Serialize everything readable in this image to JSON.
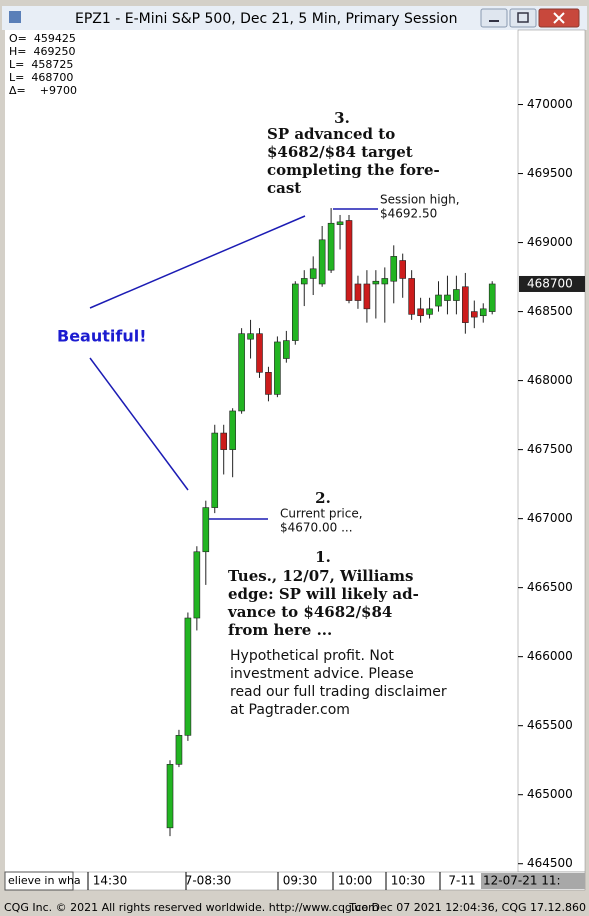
{
  "chart_data": {
    "type": "candlestick",
    "title": "EPZ1 - E-Mini S&P 500, Dec 21, 5 Min, Primary Session",
    "open": [
      464760,
      465220,
      465430,
      466280,
      466760,
      467080,
      467620,
      467500,
      467780,
      468300,
      468340,
      468060,
      467900,
      468160,
      468290,
      468700,
      468740,
      468700,
      468800,
      469130,
      469160,
      468700,
      468700,
      468700,
      468700,
      468720,
      468870,
      468740,
      468520,
      468480,
      468540,
      468580,
      468580,
      468680,
      468500,
      468470,
      468500
    ],
    "high": [
      465250,
      465470,
      466320,
      466800,
      467130,
      467680,
      467680,
      467800,
      468380,
      468440,
      468380,
      468100,
      468320,
      468360,
      468720,
      468800,
      468900,
      469120,
      469250,
      469200,
      469200,
      468760,
      468800,
      468800,
      468820,
      468980,
      468920,
      468800,
      468600,
      468600,
      468720,
      468760,
      468760,
      468780,
      468580,
      468560,
      468720
    ],
    "low": [
      464700,
      465200,
      465390,
      466190,
      466520,
      467040,
      467320,
      467300,
      467760,
      468160,
      468020,
      467850,
      467880,
      468130,
      468260,
      468540,
      468620,
      468680,
      468780,
      468950,
      468560,
      468520,
      468420,
      468450,
      468420,
      468560,
      468600,
      468440,
      468420,
      468450,
      468500,
      468480,
      468480,
      468340,
      468380,
      468420,
      468480
    ],
    "close": [
      465220,
      465430,
      466280,
      466760,
      467080,
      467620,
      467500,
      467780,
      468340,
      468340,
      468060,
      467900,
      468280,
      468290,
      468700,
      468740,
      468810,
      469020,
      469140,
      469150,
      468580,
      468580,
      468520,
      468720,
      468740,
      468900,
      468740,
      468480,
      468470,
      468520,
      468620,
      468620,
      468660,
      468420,
      468460,
      468520,
      468700
    ],
    "up_color": "#22b422",
    "down_color": "#cc1c1c",
    "marker_color": "#202020",
    "ylim": [
      464440,
      470540
    ],
    "yticks": [
      464500,
      465000,
      465500,
      466000,
      466500,
      467000,
      467500,
      468000,
      468500,
      469000,
      469500,
      470000
    ],
    "x_labels": [
      "14:30",
      "7-08:30",
      "09:30",
      "10:00",
      "10:30",
      "7-11"
    ],
    "x_left_label": "elieve in wha",
    "x_right_label": "12-07-21 11:",
    "info_lines": [
      "O=  459425",
      "H=  469250",
      "L=  458725",
      "L=  468700",
      "Δ=    +9700"
    ],
    "annotations": {
      "result": {
        "number": "3.",
        "lines": [
          "SP advanced to",
          "$4682/$84 target",
          "completing the fore-",
          "cast"
        ]
      },
      "session_high": [
        "Session high,",
        "$4692.50"
      ],
      "beautiful": "Beautiful!",
      "current": {
        "number": "2.",
        "lines": [
          "Current price,",
          "$4670.00 ..."
        ]
      },
      "forecast": {
        "number": "1.",
        "lines": [
          "Tues., 12/07, Williams",
          "edge: SP will likely ad-",
          "vance to $4682/$84",
          "from here ..."
        ]
      },
      "disclaimer": [
        "Hypothetical profit. Not",
        "investment advice. Please",
        "read our full trading disclaimer",
        "at Pagtrader.com"
      ]
    }
  },
  "footer": {
    "left": "CQG Inc. © 2021 All rights reserved worldwide. http://www.cqg.com",
    "right": "Tue Dec 07 2021 12:04:36, CQG 17.12.860"
  }
}
